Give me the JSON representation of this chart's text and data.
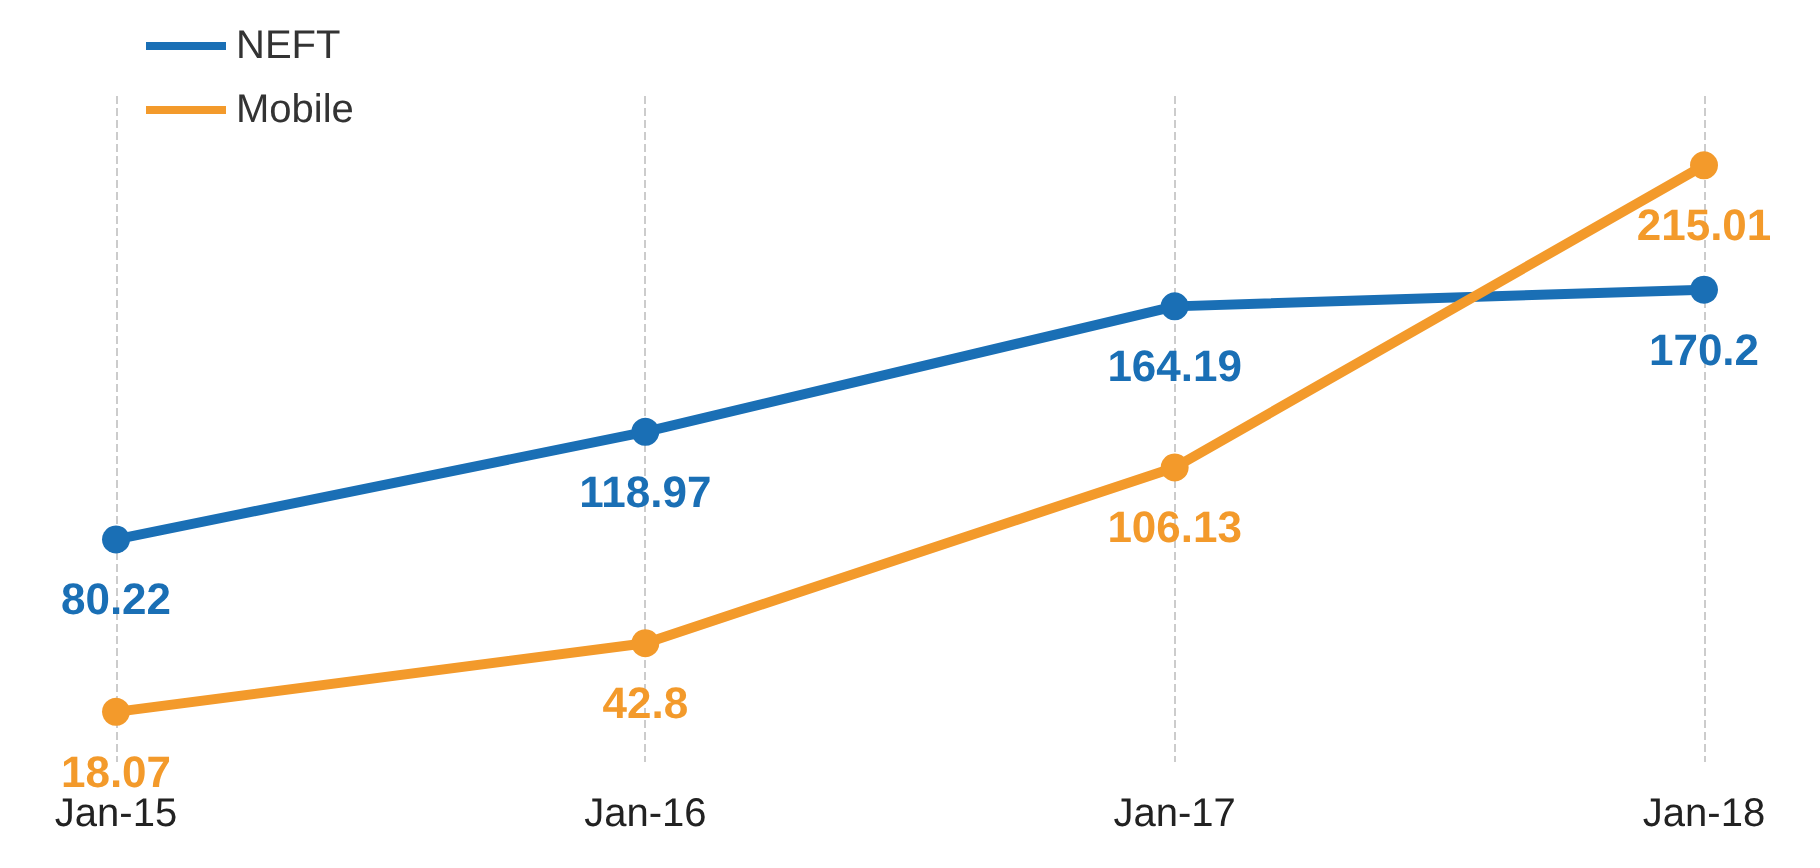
{
  "chart_data": {
    "type": "line",
    "categories": [
      "Jan-15",
      "Jan-16",
      "Jan-17",
      "Jan-18"
    ],
    "series": [
      {
        "name": "NEFT",
        "color": "#1a6fb5",
        "values": [
          80.22,
          118.97,
          164.19,
          170.2
        ]
      },
      {
        "name": "Mobile",
        "color": "#f39a2b",
        "values": [
          18.07,
          42.8,
          106.13,
          215.01
        ]
      }
    ],
    "data_labels": true,
    "grid": "x",
    "legend": "top left",
    "marker": "circle",
    "line_style": "solid",
    "tick_labels": "x"
  }
}
